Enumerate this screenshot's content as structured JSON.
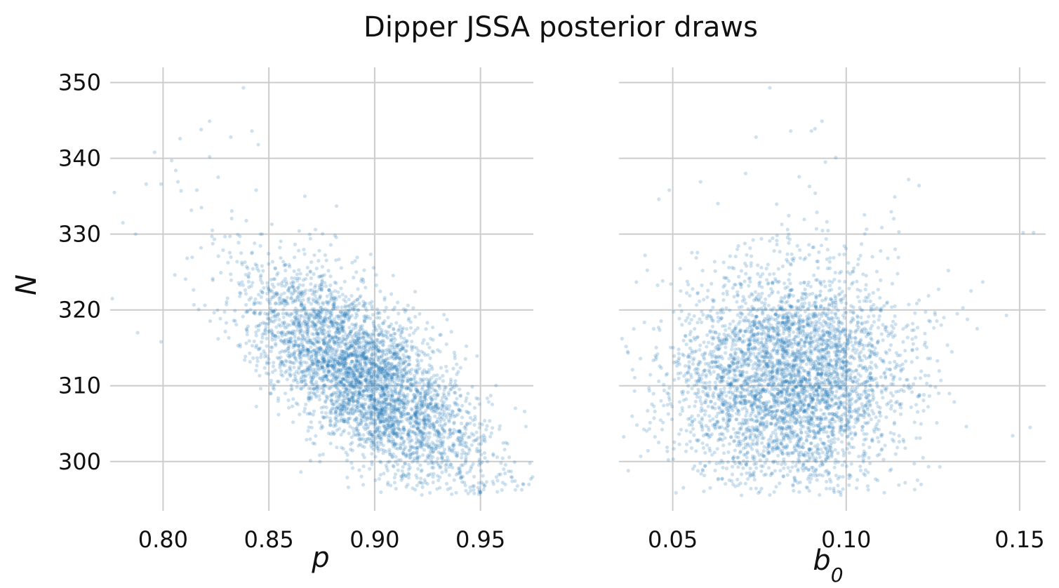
{
  "title": "Dipper JSSA posterior draws",
  "colors": {
    "points": "#1f77b4",
    "grid": "#cccccc",
    "text": "#111111",
    "background": "#ffffff"
  },
  "chart_data": [
    {
      "type": "scatter",
      "xlabel": "p",
      "ylabel": "N",
      "xlim": [
        0.775,
        0.975
      ],
      "ylim": [
        293.5,
        352
      ],
      "xticks": [
        0.8,
        0.85,
        0.9,
        0.95
      ],
      "xtick_labels": [
        "0.80",
        "0.85",
        "0.90",
        "0.95"
      ],
      "yticks": [
        300,
        310,
        320,
        330,
        340,
        350
      ],
      "ytick_labels": [
        "300",
        "310",
        "320",
        "330",
        "340",
        "350"
      ],
      "grid": true,
      "series": [
        {
          "marker": "dot",
          "alpha": 0.22,
          "sample_size": 4000,
          "distribution": {
            "x_mean": 0.895,
            "x_sd": 0.028,
            "y_mean": 311,
            "y_sd": 7.3,
            "correlation": -0.7
          },
          "points": [
            [
              0.838,
              349.3
            ],
            [
              0.822,
              344.9
            ],
            [
              0.818,
              343.8
            ],
            [
              0.842,
              343.6
            ],
            [
              0.808,
              342.6
            ],
            [
              0.832,
              342.8
            ],
            [
              0.845,
              341.8
            ],
            [
              0.796,
              340.8
            ],
            [
              0.822,
              340.2
            ],
            [
              0.806,
              338.4
            ],
            [
              0.807,
              336.9
            ],
            [
              0.826,
              337.5
            ],
            [
              0.792,
              336.6
            ],
            [
              0.799,
              336.6
            ],
            [
              0.777,
              335.5
            ],
            [
              0.816,
              335.8
            ],
            [
              0.867,
              335.0
            ],
            [
              0.844,
              335.8
            ],
            [
              0.882,
              333.7
            ],
            [
              0.781,
              331.5
            ],
            [
              0.787,
              330.0
            ],
            [
              0.872,
              330.6
            ],
            [
              0.846,
              330.0
            ],
            [
              0.776,
              321.5
            ],
            [
              0.788,
              317.0
            ],
            [
              0.799,
              315.8
            ],
            [
              0.95,
              296.0
            ],
            [
              0.958,
              296.0
            ],
            [
              0.965,
              297.4
            ],
            [
              0.947,
              298.0
            ],
            [
              0.961,
              299.0
            ],
            [
              0.956,
              301.0
            ],
            [
              0.962,
              302.5
            ],
            [
              0.952,
              303.2
            ],
            [
              0.944,
              306.5
            ],
            [
              0.94,
              304.0
            ]
          ]
        }
      ]
    },
    {
      "type": "scatter",
      "xlabel": "b",
      "xlabel_subscript": "0",
      "ylabel": "",
      "xlim": [
        0.0345,
        0.1575
      ],
      "ylim": [
        293.5,
        352
      ],
      "xticks": [
        0.05,
        0.1,
        0.15
      ],
      "xtick_labels": [
        "0.05",
        "0.10",
        "0.15"
      ],
      "yticks": [
        300,
        310,
        320,
        330,
        340,
        350
      ],
      "grid": true,
      "series": [
        {
          "marker": "dot",
          "alpha": 0.22,
          "sample_size": 4000,
          "distribution": {
            "x_mean": 0.084,
            "x_sd": 0.0165,
            "y_mean": 311,
            "y_sd": 7.3,
            "correlation": 0.05
          },
          "points": [
            [
              0.078,
              349.3
            ],
            [
              0.093,
              344.9
            ],
            [
              0.091,
              343.9
            ],
            [
              0.084,
              343.6
            ],
            [
              0.074,
              342.8
            ],
            [
              0.09,
              343.6
            ],
            [
              0.097,
              340.1
            ],
            [
              0.094,
              339.5
            ],
            [
              0.114,
              334.9
            ],
            [
              0.118,
              337.2
            ],
            [
              0.121,
              336.4
            ],
            [
              0.046,
              334.6
            ],
            [
              0.049,
              335.8
            ],
            [
              0.058,
              336.9
            ],
            [
              0.071,
              338.0
            ],
            [
              0.151,
              330.2
            ],
            [
              0.154,
              330.2
            ],
            [
              0.148,
              303.4
            ],
            [
              0.153,
              304.5
            ],
            [
              0.037,
              314.5
            ],
            [
              0.039,
              309.3
            ],
            [
              0.042,
              327.2
            ],
            [
              0.117,
              297.2
            ],
            [
              0.127,
              299.3
            ],
            [
              0.136,
              322.5
            ],
            [
              0.132,
              319.5
            ]
          ]
        }
      ]
    }
  ]
}
